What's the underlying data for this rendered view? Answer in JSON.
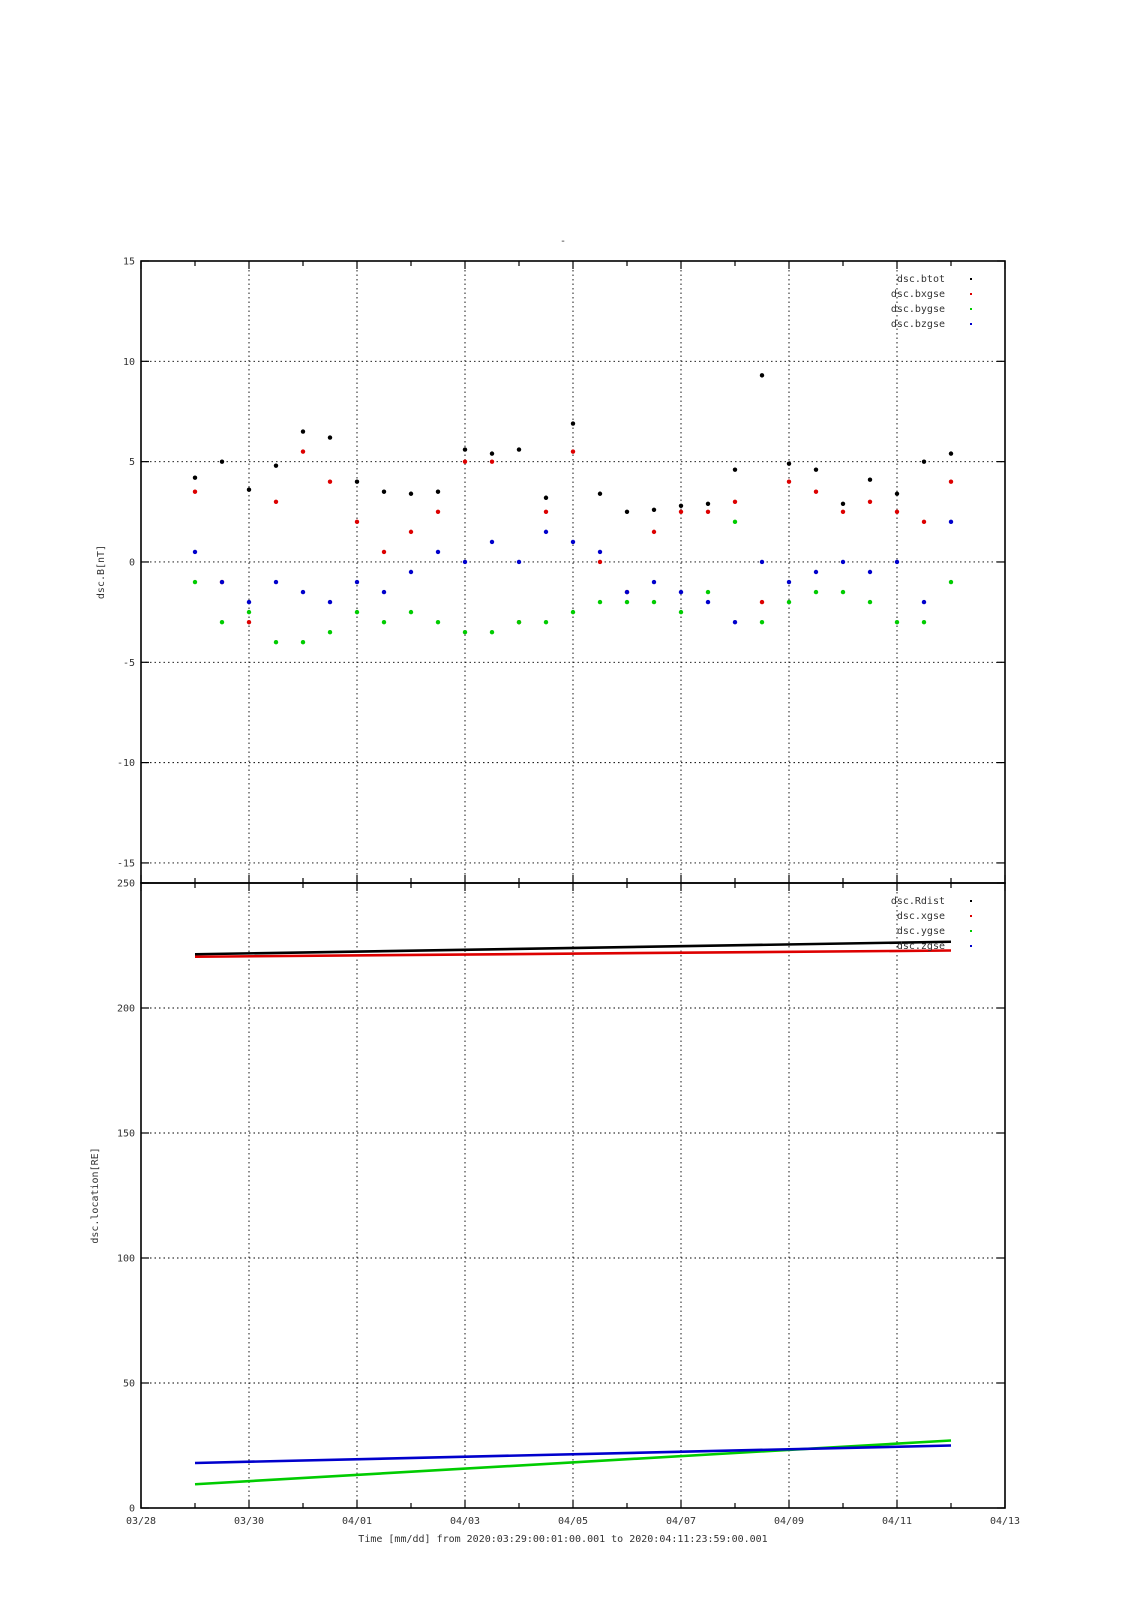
{
  "top_mark": "-",
  "xaxis": {
    "label": "Time [mm/dd]  from 2020:03:29:00:01:00.001  to  2020:04:11:23:59:00.001",
    "ticks": [
      "03/28",
      "03/30",
      "04/01",
      "04/03",
      "04/05",
      "04/07",
      "04/09",
      "04/11",
      "04/13"
    ],
    "range_days": [
      0,
      16
    ]
  },
  "colors": {
    "black": "#000000",
    "red": "#dd0000",
    "green": "#00cc00",
    "blue": "#0000cc"
  },
  "chart_data": [
    {
      "type": "scatter",
      "ylabel": "dsc.B[nT]",
      "ylim": [
        -16,
        15
      ],
      "yticks": [
        -15,
        -10,
        -5,
        0,
        5,
        10,
        15
      ],
      "ytick_labels": [
        "-15",
        "-10",
        "-5",
        "0",
        "5",
        "10",
        "15"
      ],
      "grid": true,
      "legend_position": "top-right",
      "series": [
        {
          "name": "dsc.btot",
          "color": "#000000",
          "x": [
            "03/29 00:00",
            "03/29 12:00",
            "03/30 00:00",
            "03/30 12:00",
            "03/31 00:00",
            "03/31 12:00",
            "04/01 00:00",
            "04/01 12:00",
            "04/02 00:00",
            "04/02 12:00",
            "04/03 00:00",
            "04/03 12:00",
            "04/04 00:00",
            "04/04 12:00",
            "04/05 00:00",
            "04/05 12:00",
            "04/06 00:00",
            "04/06 12:00",
            "04/07 00:00",
            "04/07 12:00",
            "04/08 00:00",
            "04/08 12:00",
            "04/09 00:00",
            "04/09 12:00",
            "04/10 00:00",
            "04/10 12:00",
            "04/11 00:00",
            "04/11 12:00",
            "04/12 00:00"
          ],
          "values": [
            4.2,
            5.0,
            3.6,
            4.8,
            6.5,
            6.2,
            4.0,
            3.5,
            3.4,
            3.5,
            5.6,
            5.4,
            5.6,
            3.2,
            6.9,
            3.4,
            2.5,
            2.6,
            2.8,
            2.9,
            4.6,
            9.3,
            4.9,
            4.6,
            2.9,
            4.1,
            3.4,
            5.0,
            5.4
          ]
        },
        {
          "name": "dsc.bxgse",
          "color": "#dd0000",
          "x": [
            "03/29 00:00",
            "03/29 12:00",
            "03/30 00:00",
            "03/30 12:00",
            "03/31 00:00",
            "03/31 12:00",
            "04/01 00:00",
            "04/01 12:00",
            "04/02 00:00",
            "04/02 12:00",
            "04/03 00:00",
            "04/03 12:00",
            "04/04 00:00",
            "04/04 12:00",
            "04/05 00:00",
            "04/05 12:00",
            "04/06 00:00",
            "04/06 12:00",
            "04/07 00:00",
            "04/07 12:00",
            "04/08 00:00",
            "04/08 12:00",
            "04/09 00:00",
            "04/09 12:00",
            "04/10 00:00",
            "04/10 12:00",
            "04/11 00:00",
            "04/11 12:00",
            "04/12 00:00"
          ],
          "values": [
            3.5,
            -1.0,
            -3.0,
            3.0,
            5.5,
            4.0,
            2.0,
            0.5,
            1.5,
            2.5,
            5.0,
            5.0,
            -3.0,
            2.5,
            5.5,
            0.0,
            -1.5,
            1.5,
            2.5,
            2.5,
            3.0,
            -2.0,
            4.0,
            3.5,
            2.5,
            3.0,
            2.5,
            2.0,
            4.0
          ]
        },
        {
          "name": "dsc.bygse",
          "color": "#00cc00",
          "x": [
            "03/29 00:00",
            "03/29 12:00",
            "03/30 00:00",
            "03/30 12:00",
            "03/31 00:00",
            "03/31 12:00",
            "04/01 00:00",
            "04/01 12:00",
            "04/02 00:00",
            "04/02 12:00",
            "04/03 00:00",
            "04/03 12:00",
            "04/04 00:00",
            "04/04 12:00",
            "04/05 00:00",
            "04/05 12:00",
            "04/06 00:00",
            "04/06 12:00",
            "04/07 00:00",
            "04/07 12:00",
            "04/08 00:00",
            "04/08 12:00",
            "04/09 00:00",
            "04/09 12:00",
            "04/10 00:00",
            "04/10 12:00",
            "04/11 00:00",
            "04/11 12:00",
            "04/12 00:00"
          ],
          "values": [
            -1.0,
            -3.0,
            -2.5,
            -4.0,
            -4.0,
            -3.5,
            -2.5,
            -3.0,
            -2.5,
            -3.0,
            -3.5,
            -3.5,
            -3.0,
            -3.0,
            -2.5,
            -2.0,
            -2.0,
            -2.0,
            -2.5,
            -1.5,
            2.0,
            -3.0,
            -2.0,
            -1.5,
            -1.5,
            -2.0,
            -3.0,
            -3.0,
            -1.0
          ]
        },
        {
          "name": "dsc.bzgse",
          "color": "#0000cc",
          "x": [
            "03/29 00:00",
            "03/29 12:00",
            "03/30 00:00",
            "03/30 12:00",
            "03/31 00:00",
            "03/31 12:00",
            "04/01 00:00",
            "04/01 12:00",
            "04/02 00:00",
            "04/02 12:00",
            "04/03 00:00",
            "04/03 12:00",
            "04/04 00:00",
            "04/04 12:00",
            "04/05 00:00",
            "04/05 12:00",
            "04/06 00:00",
            "04/06 12:00",
            "04/07 00:00",
            "04/07 12:00",
            "04/08 00:00",
            "04/08 12:00",
            "04/09 00:00",
            "04/09 12:00",
            "04/10 00:00",
            "04/10 12:00",
            "04/11 00:00",
            "04/11 12:00",
            "04/12 00:00"
          ],
          "values": [
            0.5,
            -1.0,
            -2.0,
            -1.0,
            -1.5,
            -2.0,
            -1.0,
            -1.5,
            -0.5,
            0.5,
            0.0,
            1.0,
            0.0,
            1.5,
            1.0,
            0.5,
            -1.5,
            -1.0,
            -1.5,
            -2.0,
            -3.0,
            0.0,
            -1.0,
            -0.5,
            0.0,
            -0.5,
            0.0,
            -2.0,
            2.0
          ]
        }
      ]
    },
    {
      "type": "scatter",
      "ylabel": "dsc.location[RE]",
      "ylim": [
        0,
        250
      ],
      "yticks": [
        0,
        50,
        100,
        150,
        200,
        250
      ],
      "ytick_labels": [
        "0",
        "50",
        "100",
        "150",
        "200",
        "250"
      ],
      "grid": true,
      "legend_position": "top-right",
      "series": [
        {
          "name": "dsc.Rdist",
          "color": "#000000",
          "x": [
            "03/29 00:00",
            "04/12 00:00"
          ],
          "values": [
            221.5,
            226.5
          ]
        },
        {
          "name": "dsc.xgse",
          "color": "#dd0000",
          "x": [
            "03/29 00:00",
            "04/12 00:00"
          ],
          "values": [
            220.5,
            223
          ]
        },
        {
          "name": "dsc.ygse",
          "color": "#00cc00",
          "x": [
            "03/29 00:00",
            "04/12 00:00"
          ],
          "values": [
            9.5,
            27
          ]
        },
        {
          "name": "dsc.zgse",
          "color": "#0000cc",
          "x": [
            "03/29 00:00",
            "04/12 00:00"
          ],
          "values": [
            18,
            25
          ]
        }
      ]
    }
  ]
}
